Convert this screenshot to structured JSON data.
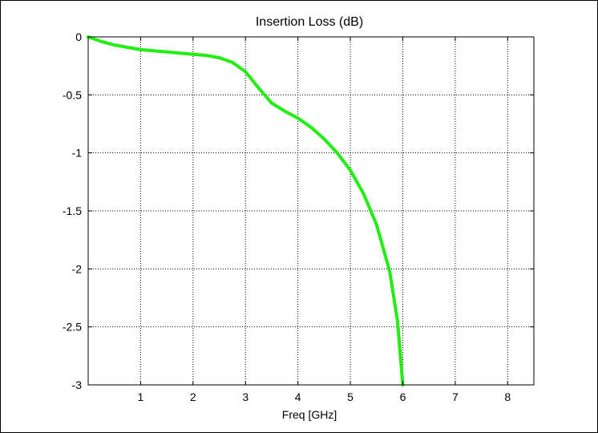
{
  "chart_data": {
    "type": "line",
    "title": "Insertion Loss (dB)",
    "xlabel": "Freq [GHz]",
    "ylabel": "",
    "xlim": [
      0,
      8.5
    ],
    "ylim": [
      -3,
      0
    ],
    "xticks": [
      1,
      2,
      3,
      4,
      5,
      6,
      7,
      8
    ],
    "yticks": [
      0,
      -0.5,
      -1,
      -1.5,
      -2,
      -2.5,
      -3
    ],
    "grid": true,
    "grid_style": "dotted",
    "line_color": "#22ee11",
    "series": [
      {
        "x": [
          0.0,
          0.25,
          0.5,
          0.75,
          1.0,
          1.25,
          1.5,
          1.75,
          2.0,
          2.25,
          2.5,
          2.75,
          3.0,
          3.25,
          3.5,
          3.75,
          4.0,
          4.25,
          4.5,
          4.75,
          5.0,
          5.25,
          5.5,
          5.75,
          5.9,
          6.0
        ],
        "y": [
          0.0,
          -0.04,
          -0.07,
          -0.09,
          -0.11,
          -0.12,
          -0.13,
          -0.14,
          -0.15,
          -0.16,
          -0.18,
          -0.22,
          -0.3,
          -0.44,
          -0.57,
          -0.64,
          -0.7,
          -0.78,
          -0.88,
          -1.0,
          -1.15,
          -1.35,
          -1.62,
          -2.02,
          -2.45,
          -3.0
        ]
      }
    ]
  }
}
